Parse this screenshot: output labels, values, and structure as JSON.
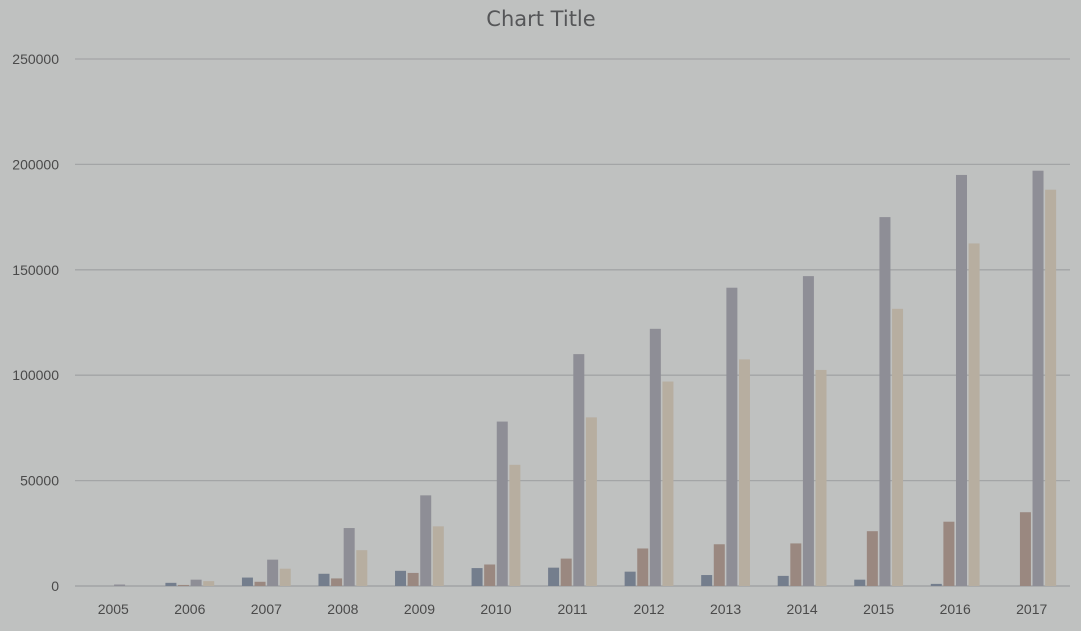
{
  "chart_data": {
    "type": "bar",
    "title": "Chart Title",
    "xlabel": "",
    "ylabel": "",
    "ylim": [
      0,
      250000
    ],
    "yticks": [
      0,
      50000,
      100000,
      150000,
      200000,
      250000
    ],
    "grid": true,
    "categories": [
      "2005",
      "2006",
      "2007",
      "2008",
      "2009",
      "2010",
      "2011",
      "2012",
      "2013",
      "2014",
      "2015",
      "2016",
      "2017"
    ],
    "series": [
      {
        "color": "#747e8d",
        "values": [
          0,
          1500,
          4000,
          5800,
          7200,
          8500,
          8700,
          6800,
          5200,
          4800,
          3000,
          1000,
          0
        ]
      },
      {
        "color": "#9a8880",
        "values": [
          0,
          500,
          2000,
          3600,
          6200,
          10200,
          13000,
          17800,
          19800,
          20200,
          26000,
          30500,
          35000
        ]
      },
      {
        "color": "#8e8e96",
        "values": [
          700,
          3000,
          12500,
          27500,
          43000,
          78000,
          110000,
          122000,
          141500,
          147000,
          175000,
          195000,
          197000
        ]
      },
      {
        "color": "#b7aea0",
        "values": [
          0,
          2300,
          8200,
          17000,
          28300,
          57500,
          80000,
          97000,
          107500,
          102500,
          131500,
          162500,
          188000
        ]
      }
    ]
  }
}
